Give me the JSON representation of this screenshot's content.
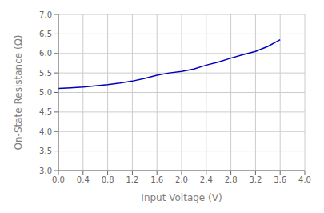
{
  "chart_data": {
    "type": "line",
    "x": [
      0.0,
      0.2,
      0.4,
      0.6,
      0.8,
      1.0,
      1.2,
      1.4,
      1.6,
      1.8,
      2.0,
      2.2,
      2.4,
      2.6,
      2.8,
      3.0,
      3.2,
      3.4,
      3.6
    ],
    "values": [
      5.1,
      5.12,
      5.14,
      5.17,
      5.2,
      5.24,
      5.29,
      5.36,
      5.44,
      5.5,
      5.54,
      5.6,
      5.7,
      5.78,
      5.88,
      5.97,
      6.05,
      6.18,
      6.35
    ],
    "color": "#0000bb",
    "xlabel": "Input Voltage (V)",
    "ylabel": "On-State Resistance (Ω)",
    "xlim": [
      0.0,
      4.0
    ],
    "ylim": [
      3.0,
      7.0
    ],
    "xticks": [
      {
        "value": 0.0,
        "label": "0.0"
      },
      0.4,
      0.8,
      1.2,
      1.6,
      {
        "value": 2.0,
        "label": "2.0"
      },
      2.4,
      2.8,
      3.2,
      3.6,
      {
        "value": 4.0,
        "label": "4.0"
      }
    ],
    "yticks": [
      {
        "value": 3.0,
        "label": "3.0"
      },
      3.5,
      {
        "value": 4.0,
        "label": "4.0"
      },
      4.5,
      {
        "value": 5.0,
        "label": "5.0"
      },
      5.5,
      {
        "value": 6.0,
        "label": "6.0"
      },
      6.5,
      {
        "value": 7.0,
        "label": "7.0"
      }
    ],
    "grid": true
  }
}
